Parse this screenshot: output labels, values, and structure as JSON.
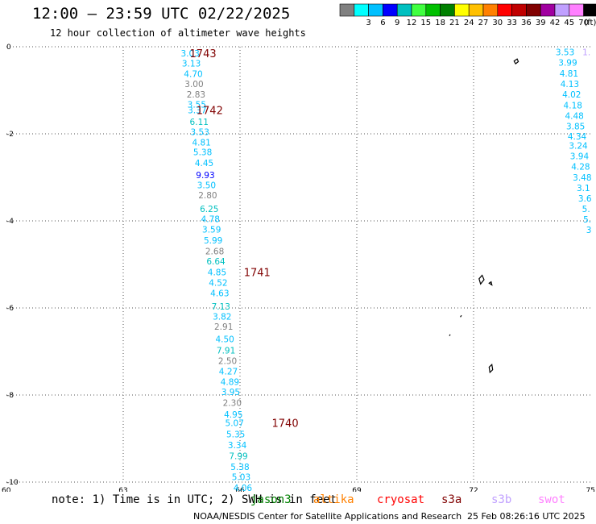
{
  "header": {
    "title": "12:00 – 23:59 UTC 02/22/2025",
    "subtitle": "12 hour collection of altimeter wave heights"
  },
  "legend": {
    "unit": "(ft)",
    "bins": [
      {
        "label": "",
        "color": "#808080"
      },
      {
        "label": "3",
        "color": "#00ffff"
      },
      {
        "label": "6",
        "color": "#00c0ff"
      },
      {
        "label": "9",
        "color": "#0000ff"
      },
      {
        "label": "12",
        "color": "#00c0c0"
      },
      {
        "label": "15",
        "color": "#40ff40"
      },
      {
        "label": "18",
        "color": "#00c000"
      },
      {
        "label": "21",
        "color": "#008000"
      },
      {
        "label": "24",
        "color": "#ffff00"
      },
      {
        "label": "27",
        "color": "#ffc000"
      },
      {
        "label": "30",
        "color": "#ff8000"
      },
      {
        "label": "33",
        "color": "#ff0000"
      },
      {
        "label": "36",
        "color": "#c00000"
      },
      {
        "label": "39",
        "color": "#800000"
      },
      {
        "label": "42",
        "color": "#a000a0"
      },
      {
        "label": "45",
        "color": "#c0a0ff"
      },
      {
        "label": "70",
        "color": "#ff80ff"
      },
      {
        "label": "",
        "color": "#000000"
      }
    ]
  },
  "footer": {
    "note": "note: 1) Time is in UTC; 2) SWH is in feet",
    "satellites": [
      {
        "name": "jason3",
        "color": "#008000"
      },
      {
        "name": "altika",
        "color": "#ff8000"
      },
      {
        "name": "cryosat",
        "color": "#ff0000"
      },
      {
        "name": "s3a",
        "color": "#800000"
      },
      {
        "name": "s3b",
        "color": "#c0a0ff"
      },
      {
        "name": "swot",
        "color": "#ff80ff"
      }
    ],
    "credit": "NOAA/NESDIS Center for Satellite Applications and Research",
    "timestamp": "25 Feb 08:26:16 UTC 2025"
  },
  "chart_data": {
    "type": "scatter",
    "xlim": [
      60,
      75
    ],
    "ylim": [
      -10,
      0
    ],
    "x_ticks": [
      {
        "value": 60,
        "label": "60"
      },
      {
        "value": 63,
        "label": "63"
      },
      {
        "value": 66,
        "label": "66"
      },
      {
        "value": 69,
        "label": "69"
      },
      {
        "value": 72,
        "label": "72"
      },
      {
        "value": 75,
        "label": "75"
      }
    ],
    "y_ticks": [
      {
        "value": 0,
        "label": "0"
      },
      {
        "value": -2,
        "label": "-2"
      },
      {
        "value": -4,
        "label": "-4"
      },
      {
        "value": -6,
        "label": "-6"
      },
      {
        "value": -8,
        "label": "-8"
      },
      {
        "value": -10,
        "label": "-10"
      }
    ],
    "grid": true,
    "points": [
      {
        "x": 64.72,
        "y": -0.15,
        "v": "3.03",
        "color": "#00c0ff"
      },
      {
        "x": 64.75,
        "y": -0.38,
        "v": "3.13",
        "color": "#00c0ff"
      },
      {
        "x": 64.8,
        "y": -0.62,
        "v": "4.70",
        "color": "#00c0ff"
      },
      {
        "x": 64.82,
        "y": -0.85,
        "v": "3.00",
        "color": "#808080"
      },
      {
        "x": 64.87,
        "y": -1.09,
        "v": "2.83",
        "color": "#808080"
      },
      {
        "x": 64.89,
        "y": -1.32,
        "v": "3.55",
        "color": "#00c0ff"
      },
      {
        "x": 64.9,
        "y": -1.45,
        "v": "3.37",
        "color": "#00c0ff"
      },
      {
        "x": 64.95,
        "y": -1.72,
        "v": "6.11",
        "color": "#00c0c0"
      },
      {
        "x": 64.97,
        "y": -1.95,
        "v": "3.53",
        "color": "#00c0ff"
      },
      {
        "x": 65.01,
        "y": -2.19,
        "v": "4.81",
        "color": "#00c0ff"
      },
      {
        "x": 65.04,
        "y": -2.42,
        "v": "5.38",
        "color": "#00c0ff"
      },
      {
        "x": 65.08,
        "y": -2.67,
        "v": "4.45",
        "color": "#00c0ff"
      },
      {
        "x": 65.11,
        "y": -2.94,
        "v": "9.93",
        "color": "#0000ff"
      },
      {
        "x": 65.14,
        "y": -3.18,
        "v": "3.50",
        "color": "#00c0ff"
      },
      {
        "x": 65.17,
        "y": -3.41,
        "v": "2.80",
        "color": "#808080"
      },
      {
        "x": 65.21,
        "y": -3.72,
        "v": "6.25",
        "color": "#00c0c0"
      },
      {
        "x": 65.24,
        "y": -3.95,
        "v": "4.78",
        "color": "#00c0ff"
      },
      {
        "x": 65.27,
        "y": -4.19,
        "v": "3.59",
        "color": "#00c0ff"
      },
      {
        "x": 65.31,
        "y": -4.44,
        "v": "5.99",
        "color": "#00c0ff"
      },
      {
        "x": 65.35,
        "y": -4.69,
        "v": "2.68",
        "color": "#808080"
      },
      {
        "x": 65.38,
        "y": -4.93,
        "v": "6.64",
        "color": "#00c0c0"
      },
      {
        "x": 65.41,
        "y": -5.18,
        "v": "4.85",
        "color": "#00c0ff"
      },
      {
        "x": 65.44,
        "y": -5.42,
        "v": "4.52",
        "color": "#00c0ff"
      },
      {
        "x": 65.48,
        "y": -5.66,
        "v": "4.63",
        "color": "#00c0ff"
      },
      {
        "x": 65.51,
        "y": -5.96,
        "v": "7.13",
        "color": "#00c0c0"
      },
      {
        "x": 65.54,
        "y": -6.19,
        "v": "3.82",
        "color": "#00c0ff"
      },
      {
        "x": 65.58,
        "y": -6.43,
        "v": "2.91",
        "color": "#808080"
      },
      {
        "x": 65.61,
        "y": -6.71,
        "v": "4.50",
        "color": "#00c0ff"
      },
      {
        "x": 65.64,
        "y": -6.97,
        "v": "7.91",
        "color": "#00c0c0"
      },
      {
        "x": 65.68,
        "y": -7.21,
        "v": "2.50",
        "color": "#808080"
      },
      {
        "x": 65.7,
        "y": -7.45,
        "v": "4.27",
        "color": "#00c0ff"
      },
      {
        "x": 65.74,
        "y": -7.69,
        "v": "4.89",
        "color": "#00c0ff"
      },
      {
        "x": 65.76,
        "y": -7.93,
        "v": "3.95",
        "color": "#00c0ff"
      },
      {
        "x": 65.8,
        "y": -8.18,
        "v": "2.30",
        "color": "#808080"
      },
      {
        "x": 65.83,
        "y": -8.44,
        "v": "4.95",
        "color": "#00c0ff"
      },
      {
        "x": 65.86,
        "y": -8.64,
        "v": "5.07",
        "color": "#00c0ff"
      },
      {
        "x": 65.89,
        "y": -8.9,
        "v": "5.35",
        "color": "#00c0ff"
      },
      {
        "x": 65.93,
        "y": -9.15,
        "v": "3.34",
        "color": "#00c0ff"
      },
      {
        "x": 65.96,
        "y": -9.4,
        "v": "7.99",
        "color": "#00c0c0"
      },
      {
        "x": 66.0,
        "y": -9.65,
        "v": "5.38",
        "color": "#00c0ff"
      },
      {
        "x": 66.03,
        "y": -9.88,
        "v": "5.03",
        "color": "#00c0ff"
      },
      {
        "x": 66.07,
        "y": -10.13,
        "v": "4.06",
        "color": "#00c0ff"
      },
      {
        "x": 74.35,
        "y": -0.12,
        "v": "3.53",
        "color": "#00c0ff"
      },
      {
        "x": 74.9,
        "y": -0.12,
        "v": "1.",
        "color": "#c0a0ff"
      },
      {
        "x": 74.42,
        "y": -0.36,
        "v": "3.99",
        "color": "#00c0ff"
      },
      {
        "x": 74.45,
        "y": -0.61,
        "v": "4.81",
        "color": "#00c0ff"
      },
      {
        "x": 74.47,
        "y": -0.85,
        "v": "4.13",
        "color": "#00c0ff"
      },
      {
        "x": 74.52,
        "y": -1.09,
        "v": "4.02",
        "color": "#00c0ff"
      },
      {
        "x": 74.55,
        "y": -1.34,
        "v": "4.18",
        "color": "#00c0ff"
      },
      {
        "x": 74.59,
        "y": -1.58,
        "v": "4.48",
        "color": "#00c0ff"
      },
      {
        "x": 74.62,
        "y": -1.82,
        "v": "3.85",
        "color": "#00c0ff"
      },
      {
        "x": 74.66,
        "y": -2.06,
        "v": "4.34",
        "color": "#00c0ff"
      },
      {
        "x": 74.69,
        "y": -2.27,
        "v": "3.24",
        "color": "#00c0ff"
      },
      {
        "x": 74.72,
        "y": -2.51,
        "v": "3.94",
        "color": "#00c0ff"
      },
      {
        "x": 74.75,
        "y": -2.75,
        "v": "4.28",
        "color": "#00c0ff"
      },
      {
        "x": 74.79,
        "y": -3.0,
        "v": "3.48",
        "color": "#00c0ff"
      },
      {
        "x": 74.82,
        "y": -3.24,
        "v": "3.1",
        "color": "#00c0ff"
      },
      {
        "x": 74.86,
        "y": -3.48,
        "v": "3.6",
        "color": "#00c0ff"
      },
      {
        "x": 74.89,
        "y": -3.72,
        "v": "5.",
        "color": "#00c0ff"
      },
      {
        "x": 74.92,
        "y": -3.96,
        "v": "5.",
        "color": "#00c0ff"
      },
      {
        "x": 74.96,
        "y": -4.2,
        "v": "3",
        "color": "#00c0ff"
      }
    ],
    "time_labels": [
      {
        "x": 65.05,
        "y": -0.15,
        "text": "1743"
      },
      {
        "x": 65.22,
        "y": -1.45,
        "text": "1742"
      },
      {
        "x": 66.44,
        "y": -5.18,
        "text": "1741"
      },
      {
        "x": 67.16,
        "y": -8.64,
        "text": "1740"
      }
    ],
    "time_label_color": "#800000",
    "islands": [
      [
        [
          73.04,
          -0.33
        ],
        [
          73.12,
          -0.28
        ],
        [
          73.15,
          -0.34
        ],
        [
          73.08,
          -0.39
        ]
      ],
      [
        [
          72.14,
          -5.33
        ],
        [
          72.22,
          -5.25
        ],
        [
          72.27,
          -5.35
        ],
        [
          72.18,
          -5.45
        ]
      ],
      [
        [
          72.4,
          -5.43
        ],
        [
          72.45,
          -5.4
        ],
        [
          72.47,
          -5.47
        ]
      ],
      [
        [
          72.4,
          -7.36
        ],
        [
          72.47,
          -7.3
        ],
        [
          72.49,
          -7.42
        ],
        [
          72.42,
          -7.48
        ]
      ],
      [
        [
          71.66,
          -6.21
        ],
        [
          71.69,
          -6.17
        ]
      ],
      [
        [
          71.38,
          -6.64
        ],
        [
          71.4,
          -6.61
        ]
      ]
    ]
  }
}
